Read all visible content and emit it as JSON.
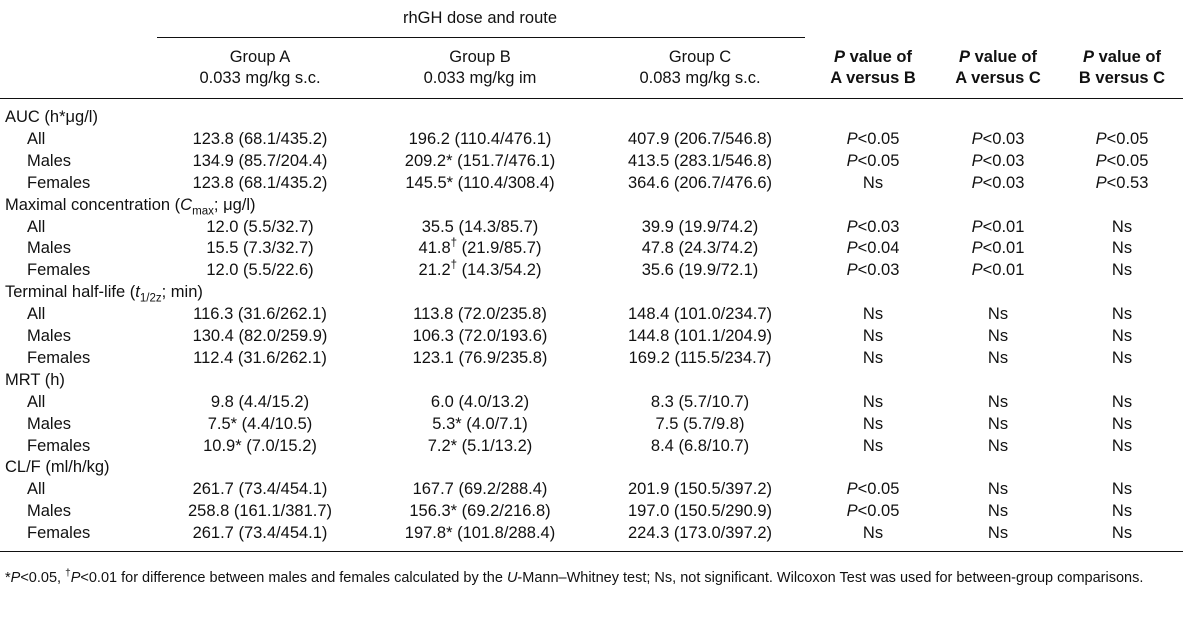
{
  "table": {
    "group_title": "rhGH dose and route",
    "columns": [
      {
        "line1": "Group A",
        "line2": "0.033 mg/kg s.c."
      },
      {
        "line1": "Group B",
        "line2": "0.033 mg/kg im"
      },
      {
        "line1": "Group C",
        "line2": "0.083 mg/kg s.c."
      },
      {
        "line1": "P value of",
        "line2": "A versus B"
      },
      {
        "line1": "P value of",
        "line2": "A versus C"
      },
      {
        "line1": "P value of",
        "line2": "B versus C"
      }
    ],
    "rows": [
      {
        "label": "AUC (h*μg/l)"
      },
      {
        "label": "All",
        "cells": [
          "123.8 (68.1/435.2)",
          "196.2 (110.4/476.1)",
          "407.9 (206.7/546.8)",
          "P<0.05",
          "P<0.03",
          "P<0.05"
        ]
      },
      {
        "label": "Males",
        "cells": [
          "134.9 (85.7/204.4)",
          "209.2* (151.7/476.1)",
          "413.5 (283.1/546.8)",
          "P<0.05",
          "P<0.03",
          "P<0.05"
        ]
      },
      {
        "label": "Females",
        "cells": [
          "123.8 (68.1/435.2)",
          "145.5* (110.4/308.4)",
          "364.6 (206.7/476.6)",
          "Ns",
          "P<0.03",
          "P<0.53"
        ]
      },
      {
        "label": "Maximal concentration (Cmax; μg/l)"
      },
      {
        "label": "All",
        "cells": [
          "12.0 (5.5/32.7)",
          "35.5 (14.3/85.7)",
          "39.9 (19.9/74.2)",
          "P<0.03",
          "P<0.01",
          "Ns"
        ]
      },
      {
        "label": "Males",
        "cells": [
          "15.5 (7.3/32.7)",
          "41.8† (21.9/85.7)",
          "47.8 (24.3/74.2)",
          "P<0.04",
          "P<0.01",
          "Ns"
        ]
      },
      {
        "label": "Females",
        "cells": [
          "12.0 (5.5/22.6)",
          "21.2† (14.3/54.2)",
          "35.6 (19.9/72.1)",
          "P<0.03",
          "P<0.01",
          "Ns"
        ]
      },
      {
        "label": "Terminal half-life (t1/2z; min)"
      },
      {
        "label": "All",
        "cells": [
          "116.3 (31.6/262.1)",
          "113.8 (72.0/235.8)",
          "148.4 (101.0/234.7)",
          "Ns",
          "Ns",
          "Ns"
        ]
      },
      {
        "label": "Males",
        "cells": [
          "130.4 (82.0/259.9)",
          "106.3 (72.0/193.6)",
          "144.8 (101.1/204.9)",
          "Ns",
          "Ns",
          "Ns"
        ]
      },
      {
        "label": "Females",
        "cells": [
          "112.4 (31.6/262.1)",
          "123.1 (76.9/235.8)",
          "169.2 (115.5/234.7)",
          "Ns",
          "Ns",
          "Ns"
        ]
      },
      {
        "label": "MRT (h)"
      },
      {
        "label": "All",
        "cells": [
          "9.8 (4.4/15.2)",
          "6.0 (4.0/13.2)",
          "8.3 (5.7/10.7)",
          "Ns",
          "Ns",
          "Ns"
        ]
      },
      {
        "label": "Males",
        "cells": [
          "7.5* (4.4/10.5)",
          "5.3* (4.0/7.1)",
          "7.5 (5.7/9.8)",
          "Ns",
          "Ns",
          "Ns"
        ]
      },
      {
        "label": "Females",
        "cells": [
          "10.9* (7.0/15.2)",
          "7.2* (5.1/13.2)",
          "8.4 (6.8/10.7)",
          "Ns",
          "Ns",
          "Ns"
        ]
      },
      {
        "label": "CL/F (ml/h/kg)"
      },
      {
        "label": "All",
        "cells": [
          "261.7 (73.4/454.1)",
          "167.7 (69.2/288.4)",
          "201.9 (150.5/397.2)",
          "P<0.05",
          "Ns",
          "Ns"
        ]
      },
      {
        "label": "Males",
        "cells": [
          "258.8 (161.1/381.7)",
          "156.3* (69.2/216.8)",
          "197.0 (150.5/290.9)",
          "P<0.05",
          "Ns",
          "Ns"
        ]
      },
      {
        "label": "Females",
        "cells": [
          "261.7 (73.4/454.1)",
          "197.8* (101.8/288.4)",
          "224.3 (173.0/397.2)",
          "Ns",
          "Ns",
          "Ns"
        ]
      }
    ],
    "footnote": "*P<0.05, †P<0.01 for difference between males and females calculated by the U-Mann–Whitney test; Ns, not significant. Wilcoxon Test was used for between-group comparisons."
  }
}
